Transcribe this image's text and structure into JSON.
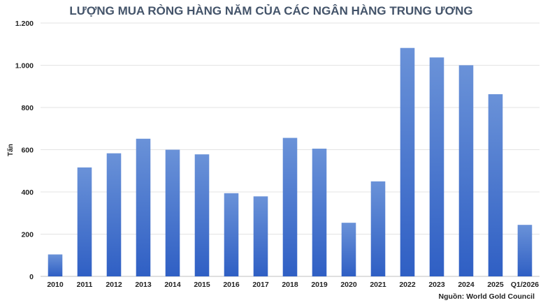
{
  "chart_data": {
    "type": "bar",
    "title": "LƯỢNG MUA RÒNG HÀNG NĂM CỦA CÁC NGÂN HÀNG TRUNG ƯƠNG",
    "ylabel": "Tấn",
    "xlabel": "",
    "source": "Nguồn: World Gold Council",
    "categories": [
      "2010",
      "2011",
      "2012",
      "2013",
      "2014",
      "2015",
      "2016",
      "2017",
      "2018",
      "2019",
      "2020",
      "2021",
      "2022",
      "2023",
      "2024",
      "2025",
      "Q1/2026"
    ],
    "values": [
      104,
      516,
      583,
      652,
      600,
      578,
      394,
      379,
      656,
      605,
      254,
      450,
      1082,
      1037,
      1000,
      863,
      244
    ],
    "ylim": [
      0,
      1200
    ],
    "yticks": [
      0,
      200,
      400,
      600,
      800,
      1000,
      1200
    ],
    "ytick_labels": [
      "0",
      "200",
      "400",
      "600",
      "800",
      "1.000",
      "1.200"
    ],
    "grid": true,
    "bar_color_top": "#6a92d8",
    "bar_color_bottom": "#2f5fc4"
  }
}
